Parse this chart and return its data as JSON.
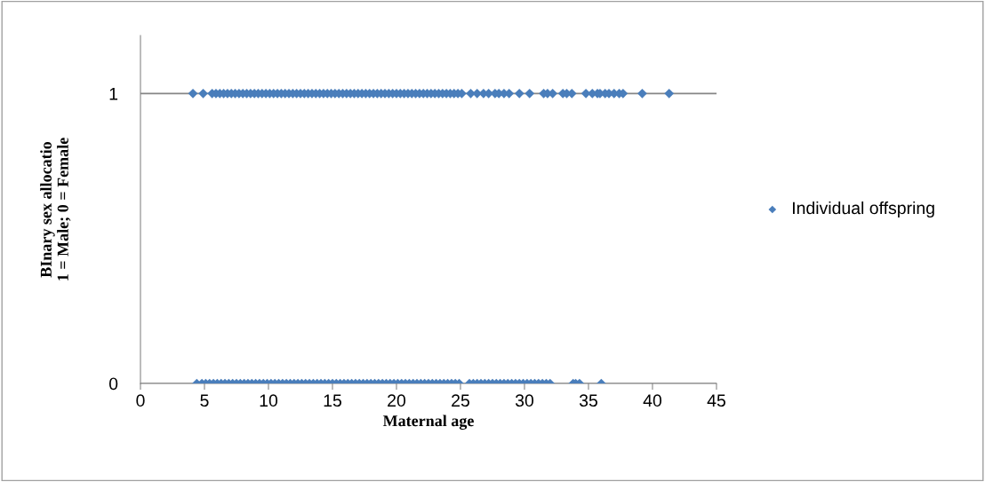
{
  "chart_data": {
    "type": "scatter",
    "xlabel": "Maternal age",
    "ylabel": "BInary sex allocatio\n1 = Male; 0 = Female",
    "xlim": [
      0,
      45
    ],
    "xticks": [
      0,
      5,
      10,
      15,
      20,
      25,
      30,
      35,
      40,
      45
    ],
    "ylim": [
      0,
      1.2
    ],
    "yticks": [
      0,
      1
    ],
    "grid": "y",
    "legend": "right",
    "marker": "diamond",
    "series": [
      {
        "name": "Individual offspring",
        "color": "#4a7ebb",
        "x": [
          4.1,
          4.9,
          5.6,
          5.9,
          6.2,
          6.5,
          6.8,
          7.1,
          7.4,
          7.7,
          8.0,
          8.3,
          8.6,
          8.9,
          9.2,
          9.5,
          9.8,
          10.1,
          10.4,
          10.7,
          11.0,
          11.3,
          11.6,
          11.9,
          12.2,
          12.5,
          12.8,
          13.1,
          13.4,
          13.7,
          14.0,
          14.3,
          14.6,
          14.9,
          15.2,
          15.5,
          15.8,
          16.1,
          16.4,
          16.7,
          17.0,
          17.3,
          17.6,
          17.9,
          18.2,
          18.5,
          18.8,
          19.1,
          19.4,
          19.7,
          20.0,
          20.3,
          20.6,
          20.9,
          21.2,
          21.5,
          21.8,
          22.1,
          22.4,
          22.7,
          23.0,
          23.3,
          23.6,
          23.9,
          24.2,
          24.5,
          24.8,
          25.1,
          25.8,
          26.3,
          26.8,
          27.2,
          27.7,
          28.0,
          28.4,
          28.8,
          29.6,
          30.4,
          31.5,
          31.8,
          32.2,
          33.0,
          33.3,
          33.7,
          34.8,
          35.3,
          35.7,
          35.9,
          36.3,
          36.6,
          37.0,
          37.4,
          37.7,
          39.2,
          41.3,
          4.4,
          4.8,
          5.1,
          5.4,
          5.7,
          6.0,
          6.3,
          6.6,
          6.9,
          7.2,
          7.5,
          7.8,
          8.1,
          8.4,
          8.7,
          9.0,
          9.3,
          9.6,
          9.9,
          10.2,
          10.5,
          10.8,
          11.1,
          11.4,
          11.7,
          12.0,
          12.3,
          12.6,
          12.9,
          13.2,
          13.5,
          13.8,
          14.1,
          14.4,
          14.7,
          15.0,
          15.3,
          15.6,
          15.9,
          16.2,
          16.5,
          16.8,
          17.1,
          17.4,
          17.7,
          18.0,
          18.3,
          18.6,
          18.9,
          19.2,
          19.5,
          19.8,
          20.1,
          20.4,
          20.7,
          21.0,
          21.3,
          21.6,
          21.9,
          22.2,
          22.5,
          22.8,
          23.1,
          23.4,
          23.7,
          24.0,
          24.3,
          24.6,
          24.9,
          25.7,
          26.0,
          26.3,
          26.6,
          26.9,
          27.2,
          27.5,
          27.8,
          28.1,
          28.4,
          28.7,
          29.0,
          29.3,
          29.6,
          29.9,
          30.2,
          30.5,
          30.8,
          31.1,
          31.4,
          31.7,
          32.0,
          33.8,
          34.0,
          34.3,
          36.0
        ],
        "values": [
          1,
          1,
          1,
          1,
          1,
          1,
          1,
          1,
          1,
          1,
          1,
          1,
          1,
          1,
          1,
          1,
          1,
          1,
          1,
          1,
          1,
          1,
          1,
          1,
          1,
          1,
          1,
          1,
          1,
          1,
          1,
          1,
          1,
          1,
          1,
          1,
          1,
          1,
          1,
          1,
          1,
          1,
          1,
          1,
          1,
          1,
          1,
          1,
          1,
          1,
          1,
          1,
          1,
          1,
          1,
          1,
          1,
          1,
          1,
          1,
          1,
          1,
          1,
          1,
          1,
          1,
          1,
          1,
          1,
          1,
          1,
          1,
          1,
          1,
          1,
          1,
          1,
          1,
          1,
          1,
          1,
          1,
          1,
          1,
          1,
          1,
          1,
          1,
          1,
          1,
          1,
          1,
          1,
          1,
          1,
          0,
          0,
          0,
          0,
          0,
          0,
          0,
          0,
          0,
          0,
          0,
          0,
          0,
          0,
          0,
          0,
          0,
          0,
          0,
          0,
          0,
          0,
          0,
          0,
          0,
          0,
          0,
          0,
          0,
          0,
          0,
          0,
          0,
          0,
          0,
          0,
          0,
          0,
          0,
          0,
          0,
          0,
          0,
          0,
          0,
          0,
          0,
          0,
          0,
          0,
          0,
          0,
          0,
          0,
          0,
          0,
          0,
          0,
          0,
          0,
          0,
          0,
          0,
          0,
          0,
          0,
          0,
          0,
          0,
          0,
          0,
          0,
          0,
          0,
          0,
          0,
          0,
          0,
          0,
          0,
          0,
          0,
          0,
          0,
          0,
          0,
          0,
          0,
          0,
          0,
          0,
          0,
          0,
          0,
          0
        ]
      }
    ]
  }
}
